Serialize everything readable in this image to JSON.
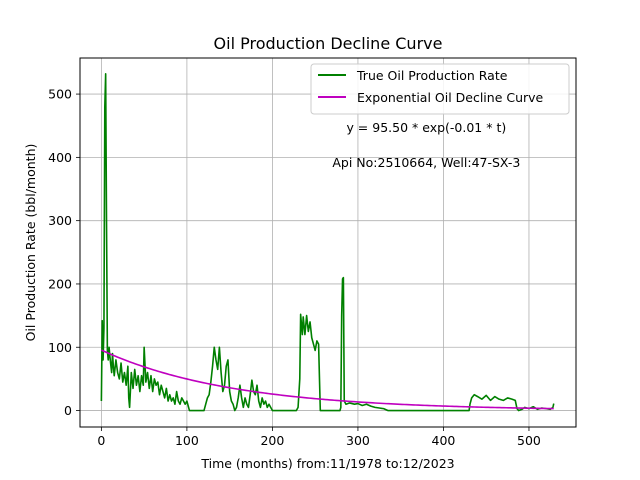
{
  "chart_data": {
    "type": "line",
    "title": "Oil Production Decline Curve",
    "xlabel": "Time (months) from:11/1978 to:12/2023",
    "ylabel": "Oil Production Rate (bbl/month)",
    "xlim": [
      -25,
      555
    ],
    "ylim": [
      -26,
      557
    ],
    "x_ticks": [
      0,
      100,
      200,
      300,
      400,
      500
    ],
    "y_ticks": [
      0,
      100,
      200,
      300,
      400,
      500
    ],
    "grid": true,
    "legend_position": "upper-right",
    "annotations": [
      {
        "text": "y = 95.50 * exp(-0.01 * t)",
        "x": 380,
        "y": 440
      },
      {
        "text": "Api No:2510664, Well:47-SX-3",
        "x": 380,
        "y": 385
      }
    ],
    "series": [
      {
        "name": "True Oil Production Rate",
        "color": "#008000",
        "kind": "points",
        "points": [
          [
            0,
            15
          ],
          [
            1,
            142
          ],
          [
            2,
            80
          ],
          [
            3,
            130
          ],
          [
            4,
            480
          ],
          [
            5,
            532
          ],
          [
            6,
            300
          ],
          [
            7,
            95
          ],
          [
            8,
            80
          ],
          [
            9,
            100
          ],
          [
            10,
            85
          ],
          [
            11,
            72
          ],
          [
            12,
            60
          ],
          [
            13,
            90
          ],
          [
            14,
            70
          ],
          [
            15,
            55
          ],
          [
            17,
            80
          ],
          [
            19,
            60
          ],
          [
            21,
            50
          ],
          [
            23,
            75
          ],
          [
            25,
            45
          ],
          [
            27,
            60
          ],
          [
            29,
            40
          ],
          [
            31,
            70
          ],
          [
            32,
            20
          ],
          [
            33,
            5
          ],
          [
            35,
            60
          ],
          [
            37,
            35
          ],
          [
            39,
            65
          ],
          [
            41,
            40
          ],
          [
            43,
            55
          ],
          [
            45,
            30
          ],
          [
            47,
            55
          ],
          [
            49,
            40
          ],
          [
            50,
            100
          ],
          [
            52,
            45
          ],
          [
            54,
            60
          ],
          [
            56,
            35
          ],
          [
            58,
            55
          ],
          [
            60,
            30
          ],
          [
            62,
            50
          ],
          [
            64,
            40
          ],
          [
            66,
            45
          ],
          [
            68,
            25
          ],
          [
            70,
            40
          ],
          [
            72,
            30
          ],
          [
            74,
            20
          ],
          [
            76,
            35
          ],
          [
            78,
            15
          ],
          [
            80,
            25
          ],
          [
            82,
            15
          ],
          [
            84,
            20
          ],
          [
            86,
            10
          ],
          [
            88,
            30
          ],
          [
            90,
            15
          ],
          [
            92,
            10
          ],
          [
            94,
            20
          ],
          [
            96,
            15
          ],
          [
            98,
            10
          ],
          [
            100,
            15
          ],
          [
            103,
            0
          ],
          [
            106,
            0
          ],
          [
            110,
            0
          ],
          [
            115,
            0
          ],
          [
            120,
            0
          ],
          [
            122,
            10
          ],
          [
            124,
            20
          ],
          [
            126,
            25
          ],
          [
            128,
            45
          ],
          [
            130,
            70
          ],
          [
            132,
            100
          ],
          [
            134,
            80
          ],
          [
            136,
            65
          ],
          [
            138,
            100
          ],
          [
            140,
            60
          ],
          [
            142,
            30
          ],
          [
            144,
            40
          ],
          [
            146,
            70
          ],
          [
            148,
            80
          ],
          [
            150,
            30
          ],
          [
            152,
            15
          ],
          [
            154,
            10
          ],
          [
            156,
            0
          ],
          [
            158,
            5
          ],
          [
            160,
            20
          ],
          [
            162,
            40
          ],
          [
            164,
            20
          ],
          [
            166,
            5
          ],
          [
            168,
            20
          ],
          [
            170,
            10
          ],
          [
            172,
            5
          ],
          [
            174,
            25
          ],
          [
            176,
            48
          ],
          [
            178,
            30
          ],
          [
            180,
            25
          ],
          [
            182,
            40
          ],
          [
            184,
            15
          ],
          [
            186,
            5
          ],
          [
            188,
            20
          ],
          [
            190,
            10
          ],
          [
            192,
            15
          ],
          [
            194,
            5
          ],
          [
            196,
            10
          ],
          [
            198,
            5
          ],
          [
            200,
            0
          ],
          [
            205,
            0
          ],
          [
            210,
            0
          ],
          [
            215,
            0
          ],
          [
            220,
            0
          ],
          [
            225,
            0
          ],
          [
            228,
            0
          ],
          [
            230,
            5
          ],
          [
            232,
            50
          ],
          [
            233,
            152
          ],
          [
            235,
            120
          ],
          [
            236,
            148
          ],
          [
            238,
            120
          ],
          [
            240,
            150
          ],
          [
            242,
            125
          ],
          [
            244,
            140
          ],
          [
            246,
            115
          ],
          [
            248,
            105
          ],
          [
            250,
            95
          ],
          [
            252,
            110
          ],
          [
            254,
            105
          ],
          [
            256,
            0
          ],
          [
            258,
            0
          ],
          [
            262,
            0
          ],
          [
            268,
            0
          ],
          [
            274,
            0
          ],
          [
            279,
            0
          ],
          [
            280,
            5
          ],
          [
            281,
            150
          ],
          [
            282,
            208
          ],
          [
            283,
            210
          ],
          [
            284,
            15
          ],
          [
            286,
            10
          ],
          [
            290,
            12
          ],
          [
            296,
            10
          ],
          [
            300,
            11
          ],
          [
            305,
            8
          ],
          [
            310,
            10
          ],
          [
            315,
            7
          ],
          [
            320,
            5
          ],
          [
            325,
            4
          ],
          [
            330,
            3
          ],
          [
            335,
            0
          ],
          [
            340,
            0
          ],
          [
            350,
            0
          ],
          [
            360,
            0
          ],
          [
            380,
            0
          ],
          [
            400,
            0
          ],
          [
            420,
            0
          ],
          [
            430,
            0
          ],
          [
            431,
            10
          ],
          [
            433,
            20
          ],
          [
            436,
            25
          ],
          [
            440,
            22
          ],
          [
            445,
            18
          ],
          [
            450,
            24
          ],
          [
            455,
            16
          ],
          [
            460,
            22
          ],
          [
            465,
            18
          ],
          [
            470,
            16
          ],
          [
            475,
            20
          ],
          [
            480,
            18
          ],
          [
            484,
            16
          ],
          [
            486,
            3
          ],
          [
            488,
            0
          ],
          [
            492,
            2
          ],
          [
            495,
            5
          ],
          [
            500,
            3
          ],
          [
            505,
            6
          ],
          [
            510,
            2
          ],
          [
            515,
            4
          ],
          [
            520,
            3
          ],
          [
            525,
            2
          ],
          [
            528,
            5
          ],
          [
            529,
            11
          ]
        ]
      },
      {
        "name": "Exponential Oil Decline Curve",
        "color": "#bf00bf",
        "kind": "function",
        "a": 95.5,
        "b": 0.0065,
        "x_range": [
          0,
          529
        ]
      }
    ]
  }
}
